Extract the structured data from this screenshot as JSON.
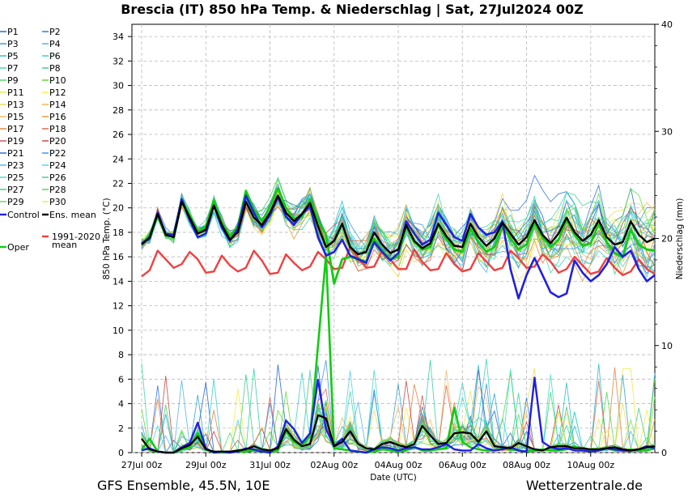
{
  "chart_data": {
    "type": "line",
    "title": "Brescia  (IT)  850 hPa Temp. & Niederschlag | Sat, 27Jul2024 00Z",
    "xlabel": "Date (UTC)",
    "ylabel": "850 hPa Temp. (°C)",
    "y2label": "Niederschlag (mm)",
    "footer_left": "GFS Ensemble, 45.5N, 10E",
    "footer_right": "Wetterzentrale.de",
    "ylim": [
      0,
      35
    ],
    "y2lim": [
      0,
      40
    ],
    "yticks": [
      "0",
      "2",
      "4",
      "6",
      "8",
      "10",
      "12",
      "14",
      "16",
      "18",
      "20",
      "22",
      "24",
      "26",
      "28",
      "30",
      "32",
      "34"
    ],
    "y2ticks": [
      "0",
      "10",
      "20",
      "30",
      "40"
    ],
    "xticks": [
      "27Jul 00z",
      "29Jul 00z",
      "31Jul 00z",
      "02Aug 00z",
      "04Aug 00z",
      "06Aug 00z",
      "08Aug 00z",
      "10Aug 00z"
    ],
    "x_hours_span": 384,
    "x_step_hours": 6,
    "legend": [
      {
        "name": "P1",
        "color": "#1f5fd6"
      },
      {
        "name": "P2",
        "color": "#2b6de0"
      },
      {
        "name": "P3",
        "color": "#2a9fd6"
      },
      {
        "name": "P4",
        "color": "#35b6e8"
      },
      {
        "name": "P5",
        "color": "#22b8cf"
      },
      {
        "name": "P6",
        "color": "#2fd0c0"
      },
      {
        "name": "P7",
        "color": "#3ad6a8"
      },
      {
        "name": "P8",
        "color": "#38c98a"
      },
      {
        "name": "P9",
        "color": "#3fdc5a"
      },
      {
        "name": "P10",
        "color": "#5ad62e"
      },
      {
        "name": "P11",
        "color": "#e8e84a"
      },
      {
        "name": "P12",
        "color": "#f1ee3a"
      },
      {
        "name": "P13",
        "color": "#f2d84c"
      },
      {
        "name": "P14",
        "color": "#f0b640"
      },
      {
        "name": "P15",
        "color": "#f0b860"
      },
      {
        "name": "P16",
        "color": "#d99a3a"
      },
      {
        "name": "P17",
        "color": "#e07f3a"
      },
      {
        "name": "P18",
        "color": "#d9604a"
      },
      {
        "name": "P19",
        "color": "#c85050"
      },
      {
        "name": "P20",
        "color": "#c84040"
      },
      {
        "name": "P21",
        "color": "#2b65c8"
      },
      {
        "name": "P22",
        "color": "#3f90e0"
      },
      {
        "name": "P23",
        "color": "#4fb1e8"
      },
      {
        "name": "P24",
        "color": "#4ad0e8"
      },
      {
        "name": "P25",
        "color": "#3ad8d0"
      },
      {
        "name": "P26",
        "color": "#2ecfa0"
      },
      {
        "name": "P27",
        "color": "#37d070"
      },
      {
        "name": "P28",
        "color": "#45da45"
      },
      {
        "name": "P29",
        "color": "#55e040"
      },
      {
        "name": "P30",
        "color": "#f0ee40"
      },
      {
        "name": "Control",
        "color": "#2020e0"
      },
      {
        "name": "Ens. mean",
        "color": "#000000"
      },
      {
        "name": "1991-2020 mean",
        "color": "#f04040"
      },
      {
        "name": "Oper",
        "color": "#11cc11"
      }
    ],
    "series": [
      {
        "name": "Ens. mean",
        "axis": "temp",
        "values": [
          17.0,
          17.6,
          19.5,
          17.8,
          17.6,
          20.5,
          19.2,
          17.9,
          18.2,
          20.2,
          18.6,
          17.4,
          18.0,
          20.5,
          19.2,
          18.6,
          19.6,
          21.0,
          19.6,
          18.9,
          19.5,
          20.4,
          18.5,
          16.8,
          17.3,
          18.7,
          16.8,
          16.2,
          16.4,
          18.0,
          17.0,
          16.3,
          16.6,
          18.6,
          17.3,
          16.7,
          17.1,
          18.7,
          17.7,
          16.9,
          16.8,
          18.7,
          17.6,
          16.9,
          17.5,
          18.8,
          17.9,
          17.0,
          17.6,
          19.0,
          17.8,
          17.1,
          17.9,
          19.2,
          18.0,
          17.3,
          17.8,
          19.0,
          17.6,
          17.0,
          17.2,
          18.9,
          17.8,
          17.2,
          17.5
        ]
      },
      {
        "name": "Control",
        "axis": "temp",
        "values": [
          17.1,
          17.5,
          19.6,
          17.9,
          17.8,
          20.7,
          19.0,
          17.6,
          17.9,
          20.2,
          18.4,
          17.3,
          18.3,
          21.0,
          19.6,
          18.4,
          19.4,
          20.9,
          19.3,
          18.6,
          19.5,
          20.1,
          17.6,
          16.1,
          16.4,
          17.4,
          16.1,
          15.8,
          15.5,
          17.2,
          16.4,
          15.7,
          16.3,
          18.9,
          17.9,
          17.0,
          17.4,
          19.6,
          18.6,
          17.6,
          17.3,
          19.5,
          18.4,
          17.8,
          18.0,
          18.9,
          15.0,
          12.6,
          14.5,
          15.9,
          14.5,
          13.1,
          12.7,
          13.0,
          15.7,
          14.7,
          14.0,
          14.5,
          15.4,
          16.8,
          16.0,
          16.5,
          15.0,
          14.0,
          14.5
        ]
      },
      {
        "name": "Oper",
        "axis": "temp",
        "values": [
          17.0,
          17.8,
          19.4,
          17.7,
          17.8,
          20.7,
          19.4,
          18.1,
          18.5,
          20.6,
          18.8,
          17.7,
          18.5,
          21.4,
          19.9,
          18.9,
          20.1,
          21.6,
          20.0,
          19.1,
          19.3,
          20.7,
          19.0,
          17.8,
          13.8,
          15.8,
          16.0,
          15.8,
          15.6,
          17.5,
          16.5,
          15.8,
          16.0,
          18.5,
          17.2,
          16.6,
          16.8,
          18.6,
          17.4,
          16.6,
          16.4,
          18.3,
          17.2,
          16.4,
          16.8,
          18.5,
          17.5,
          16.6,
          17.0,
          18.8,
          17.6,
          16.8,
          17.4,
          19.0,
          17.8,
          16.9,
          17.1,
          18.7,
          17.2,
          16.3,
          16.0,
          18.2,
          17.0,
          16.6,
          16.5
        ]
      },
      {
        "name": "1991-2020 mean",
        "axis": "temp",
        "values": [
          14.4,
          14.9,
          16.5,
          15.8,
          15.1,
          15.4,
          16.4,
          15.8,
          14.7,
          14.8,
          16.1,
          15.3,
          14.8,
          15.1,
          16.5,
          15.7,
          14.6,
          14.7,
          16.2,
          15.5,
          14.9,
          15.2,
          16.4,
          15.8,
          15.0,
          15.1,
          16.8,
          15.9,
          15.1,
          15.2,
          16.5,
          15.8,
          15.0,
          15.0,
          16.6,
          15.6,
          14.9,
          15.0,
          16.3,
          15.4,
          14.8,
          15.0,
          16.3,
          15.6,
          14.9,
          15.1,
          16.5,
          15.9,
          15.1,
          15.2,
          16.2,
          15.6,
          14.7,
          15.0,
          16.0,
          15.3,
          14.6,
          14.8,
          15.9,
          15.1,
          14.5,
          14.8,
          15.8,
          15.0,
          14.6
        ]
      },
      {
        "name": "Ens. mean precip",
        "axis": "precip",
        "values": [
          1.3,
          0.3,
          0.1,
          0.0,
          0.0,
          0.4,
          0.7,
          1.5,
          0.3,
          0.1,
          0.1,
          0.1,
          0.2,
          0.3,
          0.6,
          0.3,
          0.2,
          0.4,
          2.2,
          1.2,
          0.6,
          0.8,
          3.5,
          3.2,
          0.6,
          1.0,
          2.0,
          0.8,
          0.4,
          0.3,
          0.8,
          1.0,
          0.7,
          0.5,
          0.8,
          2.5,
          1.6,
          0.8,
          0.9,
          1.8,
          1.9,
          1.8,
          1.0,
          2.0,
          0.6,
          0.5,
          0.4,
          0.9,
          0.6,
          0.3,
          0.2,
          0.5,
          0.6,
          0.6,
          0.4,
          0.4,
          0.3,
          0.3,
          0.4,
          0.5,
          0.3,
          0.2,
          0.3,
          0.5,
          0.6
        ]
      },
      {
        "name": "Control precip",
        "axis": "precip",
        "values": [
          0.2,
          0.4,
          0.1,
          0.0,
          0.0,
          0.5,
          0.9,
          2.8,
          0.4,
          0.0,
          0.1,
          0.0,
          0.1,
          0.4,
          0.3,
          0.1,
          0.0,
          0.6,
          3.0,
          2.2,
          0.9,
          1.8,
          6.8,
          2.2,
          0.6,
          1.3,
          0.2,
          0.1,
          0.0,
          0.3,
          0.5,
          0.4,
          0.2,
          0.4,
          0.5,
          0.3,
          0.3,
          0.5,
          0.8,
          0.3,
          0.2,
          0.2,
          0.8,
          0.4,
          0.2,
          0.3,
          0.5,
          0.2,
          0.1,
          7.0,
          1.0,
          0.5,
          0.3,
          0.4,
          0.2,
          0.2,
          0.1,
          0.2,
          0.4,
          0.3,
          0.2,
          0.2,
          0.3,
          0.6,
          0.4
        ]
      },
      {
        "name": "Oper precip",
        "axis": "precip",
        "values": [
          0.3,
          1.3,
          0.1,
          0.0,
          0.0,
          0.3,
          0.5,
          1.8,
          0.3,
          0.0,
          0.0,
          0.0,
          0.1,
          0.1,
          0.2,
          0.1,
          0.0,
          0.2,
          2.0,
          1.0,
          0.7,
          1.5,
          10.0,
          18.5,
          0.4,
          0.3,
          0.2,
          0.1,
          0.0,
          0.1,
          0.3,
          0.2,
          0.1,
          0.2,
          0.5,
          0.2,
          0.2,
          0.3,
          0.4,
          4.2,
          1.0,
          0.5,
          0.3,
          0.2,
          0.2,
          0.4,
          0.3,
          0.2,
          0.1,
          0.2,
          0.3,
          0.2,
          0.2,
          0.3,
          0.6,
          0.3,
          0.2,
          0.3,
          0.5,
          0.2,
          0.2,
          0.3,
          0.2,
          0.2,
          0.4
        ]
      }
    ]
  }
}
